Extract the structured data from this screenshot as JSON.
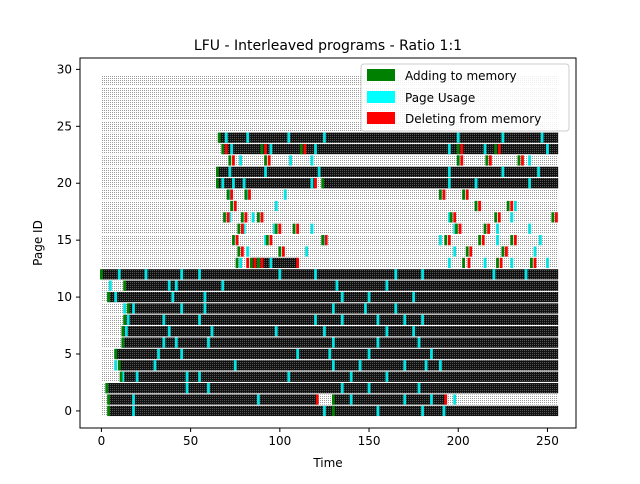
{
  "chart_data": {
    "type": "heatmap",
    "title": "LFU - Interleaved programs - Ratio 1:1",
    "xlabel": "Time",
    "ylabel": "Page ID",
    "xlim": [
      -12,
      266
    ],
    "ylim": [
      -1.5,
      31
    ],
    "xticks": [
      0,
      50,
      100,
      150,
      200,
      250
    ],
    "yticks": [
      0,
      5,
      10,
      15,
      20,
      25,
      30
    ],
    "grid": false,
    "legend_position": "top-right",
    "legend": [
      {
        "label": "Adding to memory",
        "color": "#008000"
      },
      {
        "label": "Page Usage",
        "color": "#00ffff"
      },
      {
        "label": "Deleting from memory",
        "color": "#ff0000"
      }
    ],
    "time_range": [
      0,
      256
    ],
    "page_range": [
      0,
      29
    ],
    "resident_intervals": [
      {
        "page": 0,
        "spans": [
          [
            4,
            256
          ]
        ]
      },
      {
        "page": 1,
        "spans": [
          [
            4,
            121
          ],
          [
            130,
            193
          ]
        ]
      },
      {
        "page": 2,
        "spans": [
          [
            3,
            256
          ]
        ]
      },
      {
        "page": 3,
        "spans": [
          [
            11,
            256
          ]
        ]
      },
      {
        "page": 4,
        "spans": [
          [
            10,
            256
          ]
        ]
      },
      {
        "page": 5,
        "spans": [
          [
            8,
            256
          ]
        ]
      },
      {
        "page": 6,
        "spans": [
          [
            12,
            256
          ]
        ]
      },
      {
        "page": 7,
        "spans": [
          [
            12,
            256
          ]
        ]
      },
      {
        "page": 8,
        "spans": [
          [
            13,
            256
          ]
        ]
      },
      {
        "page": 9,
        "spans": [
          [
            15,
            256
          ]
        ]
      },
      {
        "page": 10,
        "spans": [
          [
            4,
            256
          ]
        ]
      },
      {
        "page": 11,
        "spans": [
          [
            13,
            256
          ]
        ]
      },
      {
        "page": 12,
        "spans": [
          [
            0,
            256
          ]
        ]
      },
      {
        "page": 13,
        "spans": [
          [
            84,
            110
          ]
        ]
      },
      {
        "page": 20,
        "spans": [
          [
            65,
            120
          ],
          [
            124,
            256
          ]
        ]
      },
      {
        "page": 21,
        "spans": [
          [
            65,
            256
          ]
        ]
      },
      {
        "page": 23,
        "spans": [
          [
            68,
            256
          ]
        ]
      },
      {
        "page": 24,
        "spans": [
          [
            66,
            256
          ]
        ]
      }
    ],
    "usage_events": [
      {
        "page": 0,
        "t": [
          18,
          125,
          155,
          180,
          192
        ]
      },
      {
        "page": 1,
        "t": [
          18,
          88,
          140,
          170,
          185,
          198
        ]
      },
      {
        "page": 2,
        "t": [
          3,
          48,
          60,
          135,
          150,
          178
        ]
      },
      {
        "page": 3,
        "t": [
          12,
          20,
          48,
          55,
          105,
          140,
          160
        ]
      },
      {
        "page": 4,
        "t": [
          8,
          30,
          75,
          130,
          145,
          170,
          182,
          190
        ]
      },
      {
        "page": 5,
        "t": [
          8,
          32,
          45,
          110,
          128,
          150,
          185
        ]
      },
      {
        "page": 6,
        "t": [
          12,
          35,
          42,
          60,
          130,
          155,
          178
        ]
      },
      {
        "page": 7,
        "t": [
          14,
          38,
          62,
          98,
          125,
          160,
          175
        ]
      },
      {
        "page": 8,
        "t": [
          15,
          35,
          55,
          120,
          135,
          155,
          170,
          180
        ]
      },
      {
        "page": 9,
        "t": [
          13,
          18,
          45,
          58,
          130,
          148,
          165
        ]
      },
      {
        "page": 10,
        "t": [
          4,
          8,
          40,
          58,
          135,
          150,
          175
        ]
      },
      {
        "page": 11,
        "t": [
          5,
          38,
          42,
          68,
          132,
          160
        ]
      },
      {
        "page": 12,
        "t": [
          10,
          25,
          45,
          55,
          100,
          120,
          165,
          180,
          220,
          238
        ]
      },
      {
        "page": 13,
        "t": [
          78,
          88,
          95,
          195,
          215,
          230,
          250
        ]
      },
      {
        "page": 14,
        "t": [
          82,
          100,
          115,
          198,
          225,
          243
        ]
      },
      {
        "page": 15,
        "t": [
          76,
          92,
          125,
          190,
          222,
          246
        ]
      },
      {
        "page": 16,
        "t": [
          80,
          97,
          118,
          198,
          222,
          240
        ]
      },
      {
        "page": 17,
        "t": [
          72,
          85,
          90,
          195,
          230,
          255
        ]
      },
      {
        "page": 18,
        "t": [
          75,
          98,
          210,
          232
        ]
      },
      {
        "page": 19,
        "t": [
          72,
          82,
          103,
          192,
          205
        ]
      },
      {
        "page": 20,
        "t": [
          68,
          74,
          80,
          118,
          195,
          210,
          240
        ]
      },
      {
        "page": 21,
        "t": [
          72,
          92,
          122,
          195,
          225,
          245
        ]
      },
      {
        "page": 22,
        "t": [
          78,
          106,
          118,
          200,
          240
        ]
      },
      {
        "page": 23,
        "t": [
          73,
          95,
          120,
          195,
          215,
          250
        ]
      },
      {
        "page": 24,
        "t": [
          70,
          82,
          105,
          125,
          200,
          225,
          247
        ]
      }
    ],
    "add_events": [
      {
        "page": 0,
        "t": [
          4,
          130
        ]
      },
      {
        "page": 1,
        "t": [
          4,
          130
        ]
      },
      {
        "page": 2,
        "t": [
          3
        ]
      },
      {
        "page": 3,
        "t": [
          11
        ]
      },
      {
        "page": 4,
        "t": [
          10
        ]
      },
      {
        "page": 5,
        "t": [
          8
        ]
      },
      {
        "page": 6,
        "t": [
          12
        ]
      },
      {
        "page": 7,
        "t": [
          12
        ]
      },
      {
        "page": 8,
        "t": [
          13
        ]
      },
      {
        "page": 9,
        "t": [
          15
        ]
      },
      {
        "page": 10,
        "t": [
          4
        ]
      },
      {
        "page": 11,
        "t": [
          13
        ]
      },
      {
        "page": 12,
        "t": [
          0
        ]
      },
      {
        "page": 13,
        "t": [
          76,
          84,
          88,
          203,
          222,
          241
        ]
      },
      {
        "page": 14,
        "t": [
          77,
          100,
          205,
          225
        ]
      },
      {
        "page": 15,
        "t": [
          74,
          93,
          124,
          193,
          212,
          230
        ]
      },
      {
        "page": 16,
        "t": [
          77,
          98,
          108,
          199,
          215
        ]
      },
      {
        "page": 17,
        "t": [
          69,
          79,
          88,
          196,
          221,
          253
        ]
      },
      {
        "page": 18,
        "t": [
          73,
          210,
          228
        ]
      },
      {
        "page": 19,
        "t": [
          71,
          81,
          190,
          203
        ]
      },
      {
        "page": 20,
        "t": [
          65,
          124
        ]
      },
      {
        "page": 21,
        "t": [
          65
        ]
      },
      {
        "page": 22,
        "t": [
          72,
          92,
          200,
          216,
          234
        ]
      },
      {
        "page": 23,
        "t": [
          68,
          90,
          112,
          200,
          221
        ]
      },
      {
        "page": 24,
        "t": [
          66
        ]
      }
    ],
    "delete_events": [
      {
        "page": 1,
        "t": [
          121,
          193
        ]
      },
      {
        "page": 13,
        "t": [
          82,
          86,
          90,
          110,
          206,
          224,
          243
        ]
      },
      {
        "page": 14,
        "t": [
          79,
          102,
          207,
          227
        ]
      },
      {
        "page": 15,
        "t": [
          76,
          95,
          126,
          195,
          214,
          232
        ]
      },
      {
        "page": 16,
        "t": [
          79,
          100,
          110,
          201,
          217
        ]
      },
      {
        "page": 17,
        "t": [
          71,
          81,
          90,
          198,
          223,
          255
        ]
      },
      {
        "page": 18,
        "t": [
          75,
          212,
          230
        ]
      },
      {
        "page": 19,
        "t": [
          73,
          83,
          192,
          205
        ]
      },
      {
        "page": 20,
        "t": [
          120
        ]
      },
      {
        "page": 22,
        "t": [
          74,
          94,
          202,
          218,
          236
        ]
      },
      {
        "page": 23,
        "t": [
          70,
          92,
          114,
          202,
          223
        ]
      }
    ]
  }
}
